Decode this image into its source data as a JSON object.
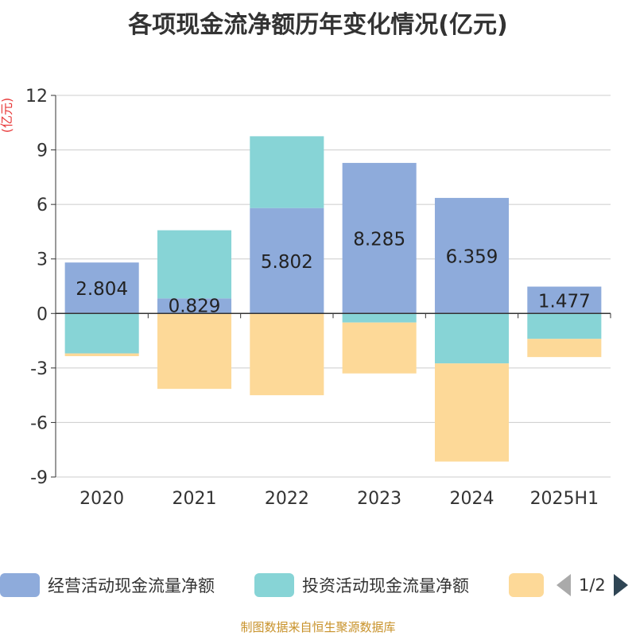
{
  "chart_data": {
    "type": "bar",
    "stacked": true,
    "title": "各项现金流净额历年变化情况(亿元)",
    "ylabel": "(亿元)",
    "categories": [
      "2020",
      "2021",
      "2022",
      "2023",
      "2024",
      "2025H1"
    ],
    "ylim": [
      -9,
      12
    ],
    "yticks": [
      12,
      9,
      6,
      3,
      0,
      -3,
      -6,
      -9
    ],
    "grid": true,
    "series": [
      {
        "name": "经营活动现金流量净额",
        "color": "#8eabdb",
        "values": [
          2.804,
          0.829,
          5.802,
          8.285,
          6.359,
          1.477
        ],
        "data_labels": [
          "2.804",
          "0.829",
          "5.802",
          "8.285",
          "6.359",
          "1.477"
        ]
      },
      {
        "name": "投资活动现金流量净额",
        "color": "#87d4d6",
        "values": [
          -2.2,
          3.75,
          3.95,
          -0.5,
          -2.75,
          -1.4
        ]
      },
      {
        "name": "",
        "color": "#fdd998",
        "values": [
          -0.15,
          -4.15,
          -4.5,
          -2.8,
          -5.4,
          -1.0
        ]
      }
    ]
  },
  "legend": {
    "pager": "1/2"
  },
  "source_note": "制图数据来自恒生聚源数据库"
}
